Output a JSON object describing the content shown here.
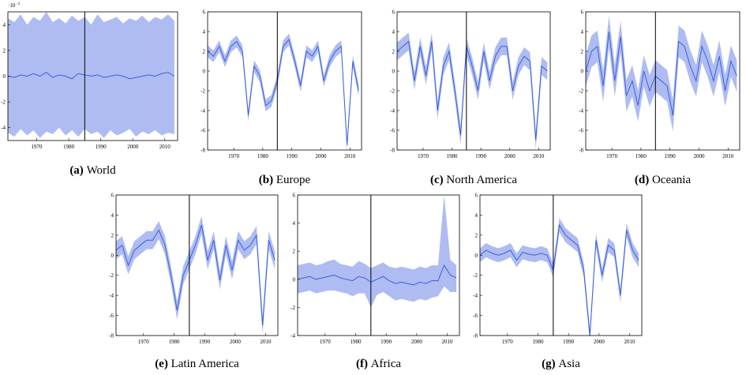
{
  "chart_data": [
    {
      "type": "line",
      "label": "(a)",
      "title": "World",
      "y_offset": "·10",
      "y_offset_exponent": "−2",
      "line_color": "#3b5fd9",
      "band_color": "#aebcf2",
      "vline": 1985,
      "xlim": [
        1961,
        2014
      ],
      "xticks": [
        1970,
        1980,
        1990,
        2000,
        2010
      ],
      "ylim": [
        -5,
        5
      ],
      "yticks": [
        -4,
        -2,
        0,
        2,
        4
      ],
      "x": [
        1961,
        1963,
        1965,
        1967,
        1969,
        1971,
        1973,
        1975,
        1977,
        1979,
        1981,
        1983,
        1985,
        1987,
        1989,
        1991,
        1993,
        1995,
        1997,
        1999,
        2001,
        2003,
        2005,
        2007,
        2009,
        2011,
        2013
      ],
      "values": [
        0,
        -0.1,
        0.1,
        0,
        0.2,
        0,
        0.3,
        -0.1,
        0.1,
        0,
        -0.2,
        0.2,
        0.1,
        0,
        0.1,
        -0.1,
        0,
        0.1,
        0,
        -0.2,
        -0.1,
        0,
        0.1,
        0,
        0.2,
        0.3,
        0
      ],
      "upper": [
        4.5,
        4.2,
        4.8,
        4.0,
        4.6,
        4.3,
        5.0,
        4.2,
        4.5,
        4.1,
        4.7,
        4.3,
        4.6,
        4.0,
        4.8,
        4.2,
        4.4,
        4.6,
        4.1,
        4.5,
        4.3,
        4.7,
        4.2,
        4.6,
        4.4,
        4.8,
        4.3
      ],
      "lower": [
        -4.4,
        -4.7,
        -4.1,
        -4.6,
        -4.2,
        -4.8,
        -4.3,
        -4.5,
        -4.0,
        -4.6,
        -4.2,
        -4.7,
        -4.1,
        -4.5,
        -4.3,
        -4.8,
        -4.2,
        -4.6,
        -4.4,
        -4.1,
        -4.7,
        -4.3,
        -4.5,
        -4.2,
        -4.6,
        -4.4,
        -4.5
      ]
    },
    {
      "type": "line",
      "label": "(b)",
      "title": "Europe",
      "line_color": "#3b5fd9",
      "band_color": "#aebcf2",
      "vline": 1985,
      "xlim": [
        1961,
        2014
      ],
      "xticks": [
        1970,
        1980,
        1990,
        2000,
        2010
      ],
      "ylim": [
        -8,
        6
      ],
      "yticks": [
        -8,
        -6,
        -4,
        -2,
        0,
        2,
        4,
        6
      ],
      "x": [
        1961,
        1963,
        1965,
        1967,
        1969,
        1971,
        1973,
        1975,
        1977,
        1979,
        1981,
        1983,
        1985,
        1987,
        1989,
        1991,
        1993,
        1995,
        1997,
        1999,
        2001,
        2003,
        2005,
        2007,
        2009,
        2011,
        2013
      ],
      "values": [
        2.0,
        1.5,
        2.5,
        1.0,
        2.5,
        3.0,
        2.0,
        -4.5,
        0.5,
        -0.5,
        -3.5,
        -3.0,
        -1.0,
        2.5,
        3.2,
        1.0,
        -1.5,
        2.0,
        1.5,
        2.5,
        -1.0,
        1.0,
        2.0,
        2.5,
        -7.5,
        1.0,
        -2.0
      ],
      "upper": [
        2.6,
        2.1,
        3.1,
        1.6,
        3.1,
        3.6,
        2.6,
        -3.9,
        1.1,
        0.1,
        -2.9,
        -2.4,
        -0.4,
        3.1,
        3.8,
        1.6,
        -0.9,
        2.6,
        2.1,
        3.1,
        -0.4,
        1.6,
        2.6,
        3.1,
        -6.9,
        1.6,
        -1.4
      ],
      "lower": [
        1.4,
        0.9,
        1.9,
        0.4,
        1.9,
        2.4,
        1.4,
        -5.1,
        -0.1,
        -1.1,
        -4.1,
        -3.6,
        -1.6,
        1.9,
        2.6,
        0.4,
        -2.1,
        1.4,
        0.9,
        1.9,
        -1.6,
        0.4,
        1.4,
        1.9,
        -8.1,
        0.4,
        -2.6
      ]
    },
    {
      "type": "line",
      "label": "(c)",
      "title": "North America",
      "line_color": "#3b5fd9",
      "band_color": "#aebcf2",
      "vline": 1985,
      "xlim": [
        1961,
        2014
      ],
      "xticks": [
        1970,
        1980,
        1990,
        2000,
        2010
      ],
      "ylim": [
        -8,
        6
      ],
      "yticks": [
        -8,
        -6,
        -4,
        -2,
        0,
        2,
        4,
        6
      ],
      "x": [
        1961,
        1963,
        1965,
        1967,
        1969,
        1971,
        1973,
        1975,
        1977,
        1979,
        1981,
        1983,
        1985,
        1987,
        1989,
        1991,
        1993,
        1995,
        1997,
        1999,
        2001,
        2003,
        2005,
        2007,
        2009,
        2011,
        2013
      ],
      "values": [
        2.0,
        2.5,
        3.0,
        -1.0,
        2.5,
        -0.5,
        3.0,
        -4.0,
        0.5,
        2.0,
        -2.0,
        -6.5,
        2.5,
        0.5,
        -2.0,
        2.0,
        -1.0,
        1.5,
        2.5,
        2.5,
        -2.0,
        0.5,
        1.5,
        1.0,
        -7.0,
        0.5,
        0
      ],
      "upper": [
        2.9,
        3.4,
        3.9,
        -0.1,
        3.4,
        0.4,
        3.9,
        -3.1,
        1.4,
        2.9,
        -1.1,
        -5.6,
        3.4,
        1.4,
        -1.1,
        2.9,
        -0.1,
        2.4,
        3.4,
        3.4,
        -1.1,
        1.4,
        2.4,
        1.9,
        -6.1,
        1.4,
        0.9
      ],
      "lower": [
        1.1,
        1.6,
        2.1,
        -1.9,
        1.6,
        -1.4,
        2.1,
        -4.9,
        -0.4,
        1.1,
        -2.9,
        -7.4,
        1.6,
        -0.4,
        -2.9,
        1.1,
        -1.9,
        0.6,
        1.6,
        1.6,
        -2.9,
        -0.4,
        0.6,
        0.1,
        -7.9,
        -0.4,
        -0.9
      ]
    },
    {
      "type": "line",
      "label": "(d)",
      "title": "Oceania",
      "line_color": "#3b5fd9",
      "band_color": "#aebcf2",
      "vline": 1985,
      "xlim": [
        1961,
        2014
      ],
      "xticks": [
        1970,
        1980,
        1990,
        2000,
        2010
      ],
      "ylim": [
        -8,
        6
      ],
      "yticks": [
        -8,
        -6,
        -4,
        -2,
        0,
        2,
        4,
        6
      ],
      "x": [
        1961,
        1963,
        1965,
        1967,
        1969,
        1971,
        1973,
        1975,
        1977,
        1979,
        1981,
        1983,
        1985,
        1987,
        1989,
        1991,
        1993,
        1995,
        1997,
        1999,
        2001,
        2003,
        2005,
        2007,
        2009,
        2011,
        2013
      ],
      "values": [
        0,
        2.0,
        2.5,
        -1.5,
        4.0,
        -1.0,
        3.5,
        -2.5,
        -1.0,
        -3.5,
        0,
        -2.0,
        -0.5,
        -1.0,
        -1.5,
        -4.5,
        3.0,
        2.5,
        0.5,
        -1.0,
        2.5,
        1.0,
        -1.0,
        1.5,
        -2.0,
        1.0,
        -0.5
      ],
      "upper": [
        1.6,
        3.6,
        4.1,
        0.1,
        5.6,
        0.6,
        5.1,
        -0.9,
        0.6,
        -1.9,
        1.6,
        -0.4,
        1.1,
        0.6,
        0.1,
        -2.9,
        4.6,
        4.1,
        2.1,
        0.6,
        4.1,
        2.6,
        0.6,
        3.1,
        -0.4,
        2.6,
        1.1
      ],
      "lower": [
        -1.6,
        0.4,
        0.9,
        -3.1,
        2.4,
        -2.6,
        1.9,
        -4.1,
        -2.6,
        -5.1,
        -1.6,
        -3.6,
        -2.1,
        -2.6,
        -3.1,
        -6.1,
        1.4,
        0.9,
        -1.1,
        -2.6,
        0.9,
        -0.6,
        -2.6,
        -0.1,
        -3.6,
        -0.6,
        -2.1
      ]
    },
    {
      "type": "line",
      "label": "(e)",
      "title": "Latin America",
      "line_color": "#3b5fd9",
      "band_color": "#aebcf2",
      "vline": 1985,
      "xlim": [
        1961,
        2014
      ],
      "xticks": [
        1970,
        1980,
        1990,
        2000,
        2010
      ],
      "ylim": [
        -8,
        6
      ],
      "yticks": [
        -8,
        -6,
        -4,
        -2,
        0,
        2,
        4,
        6
      ],
      "x": [
        1961,
        1963,
        1965,
        1967,
        1969,
        1971,
        1973,
        1975,
        1977,
        1979,
        1981,
        1983,
        1985,
        1987,
        1989,
        1991,
        1993,
        1995,
        1997,
        1999,
        2001,
        2003,
        2005,
        2007,
        2009,
        2011,
        2013
      ],
      "values": [
        0.5,
        1.0,
        -1.0,
        0.5,
        1.0,
        1.5,
        1.5,
        2.5,
        1.0,
        -2.0,
        -5.5,
        -2.0,
        -0.5,
        1.0,
        3.0,
        -0.5,
        1.5,
        -2.5,
        1.0,
        -1.5,
        1.5,
        0.5,
        1.0,
        2.0,
        -7.0,
        1.5,
        -0.5
      ],
      "upper": [
        1.4,
        1.9,
        -0.1,
        1.4,
        1.9,
        2.4,
        2.4,
        3.4,
        1.9,
        -1.1,
        -4.6,
        -1.1,
        0.4,
        1.9,
        3.9,
        0.4,
        2.4,
        -1.6,
        1.9,
        -0.6,
        2.4,
        1.4,
        1.9,
        2.9,
        -6.1,
        2.4,
        0.4
      ],
      "lower": [
        -0.4,
        0.1,
        -1.9,
        -0.4,
        0.1,
        0.6,
        0.6,
        1.6,
        0.1,
        -2.9,
        -6.4,
        -2.9,
        -1.4,
        0.1,
        2.1,
        -1.4,
        0.6,
        -3.4,
        0.1,
        -2.4,
        0.6,
        -0.4,
        0.1,
        1.1,
        -7.9,
        0.6,
        -1.4
      ]
    },
    {
      "type": "line",
      "label": "(f)",
      "title": "Africa",
      "line_color": "#3b5fd9",
      "band_color": "#aebcf2",
      "vline": 1985,
      "xlim": [
        1961,
        2014
      ],
      "xticks": [
        1970,
        1980,
        1990,
        2000,
        2010
      ],
      "ylim": [
        -4,
        6
      ],
      "yticks": [
        -4,
        -2,
        0,
        2,
        4,
        6
      ],
      "x": [
        1961,
        1963,
        1965,
        1967,
        1969,
        1971,
        1973,
        1975,
        1977,
        1979,
        1981,
        1983,
        1985,
        1987,
        1989,
        1991,
        1993,
        1995,
        1997,
        1999,
        2001,
        2003,
        2005,
        2007,
        2009,
        2011,
        2013
      ],
      "values": [
        0,
        0.1,
        0.2,
        0,
        0.1,
        0.2,
        0.3,
        0.1,
        0,
        -0.1,
        0.2,
        0.1,
        -0.2,
        0,
        0.2,
        -0.1,
        -0.3,
        -0.2,
        -0.3,
        -0.4,
        -0.2,
        -0.3,
        -0.1,
        -0.1,
        1.0,
        0.3,
        0.1
      ],
      "upper": [
        1.0,
        1.1,
        1.2,
        1.0,
        1.1,
        1.3,
        1.4,
        1.1,
        1.0,
        0.9,
        1.3,
        1.1,
        0.8,
        1.0,
        1.2,
        0.9,
        0.8,
        0.9,
        0.8,
        0.7,
        0.9,
        0.8,
        1.0,
        1.0,
        6.0,
        1.4,
        1.0
      ],
      "lower": [
        -1.0,
        -0.9,
        -0.8,
        -1.0,
        -0.9,
        -0.8,
        -0.8,
        -0.9,
        -1.0,
        -1.2,
        -1.0,
        -1.0,
        -2.0,
        -1.1,
        -0.9,
        -1.2,
        -1.5,
        -1.4,
        -1.5,
        -1.6,
        -1.4,
        -1.5,
        -1.3,
        -1.2,
        -0.5,
        -0.9,
        -0.9
      ]
    },
    {
      "type": "line",
      "label": "(g)",
      "title": "Asia",
      "line_color": "#3b5fd9",
      "band_color": "#aebcf2",
      "vline": 1985,
      "xlim": [
        1961,
        2014
      ],
      "xticks": [
        1970,
        1980,
        1990,
        2000,
        2010
      ],
      "ylim": [
        -8,
        6
      ],
      "yticks": [
        -8,
        -6,
        -4,
        -2,
        0,
        2,
        4,
        6
      ],
      "x": [
        1961,
        1963,
        1965,
        1967,
        1969,
        1971,
        1973,
        1975,
        1977,
        1979,
        1981,
        1983,
        1985,
        1987,
        1989,
        1991,
        1993,
        1995,
        1997,
        1999,
        2001,
        2003,
        2005,
        2007,
        2009,
        2011,
        2013
      ],
      "values": [
        0,
        0.5,
        0.2,
        0,
        0.2,
        0.5,
        -0.5,
        0.3,
        0.1,
        0,
        0.2,
        0,
        -1.5,
        3.0,
        2.0,
        1.5,
        1.0,
        -1.5,
        -8.0,
        1.5,
        -2.0,
        1.0,
        0.5,
        -4.0,
        2.5,
        0.5,
        -0.5
      ],
      "upper": [
        0.7,
        1.2,
        0.9,
        0.7,
        0.9,
        1.2,
        0.2,
        1.0,
        0.8,
        0.7,
        0.9,
        0.7,
        -0.8,
        3.7,
        2.7,
        2.2,
        1.7,
        -0.8,
        -7.3,
        2.2,
        -1.3,
        1.7,
        1.2,
        -3.3,
        3.2,
        1.2,
        0.2
      ],
      "lower": [
        -0.7,
        -0.2,
        -0.5,
        -0.7,
        -0.5,
        -0.2,
        -1.2,
        -0.4,
        -0.6,
        -0.7,
        -0.5,
        -0.7,
        -2.2,
        2.3,
        1.3,
        0.8,
        0.3,
        -2.2,
        -8.7,
        0.8,
        -2.7,
        0.3,
        -0.2,
        -4.7,
        1.8,
        -0.2,
        -1.2
      ]
    }
  ]
}
